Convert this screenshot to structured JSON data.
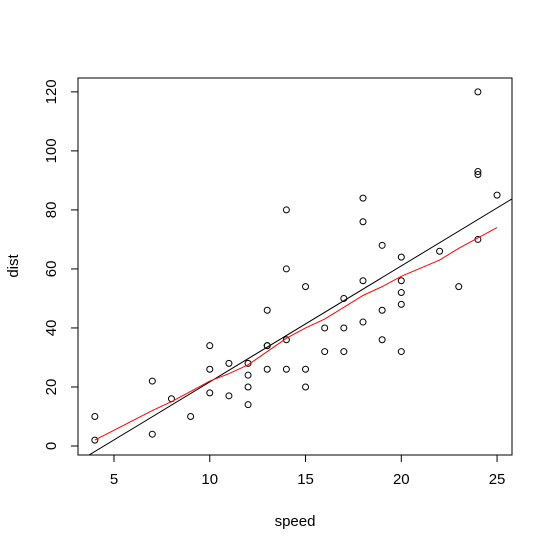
{
  "chart_data": {
    "type": "scatter",
    "xlabel": "speed",
    "ylabel": "dist",
    "x": [
      4,
      4,
      7,
      7,
      8,
      9,
      10,
      10,
      10,
      11,
      11,
      12,
      12,
      12,
      12,
      13,
      13,
      13,
      13,
      14,
      14,
      14,
      14,
      15,
      15,
      15,
      16,
      16,
      17,
      17,
      17,
      18,
      18,
      18,
      18,
      19,
      19,
      19,
      20,
      20,
      20,
      20,
      20,
      22,
      23,
      24,
      24,
      24,
      24,
      25
    ],
    "y": [
      2,
      10,
      4,
      22,
      16,
      10,
      18,
      26,
      34,
      17,
      28,
      14,
      20,
      24,
      28,
      26,
      34,
      34,
      46,
      26,
      36,
      60,
      80,
      20,
      26,
      54,
      32,
      40,
      32,
      40,
      50,
      42,
      56,
      76,
      84,
      36,
      46,
      68,
      32,
      48,
      52,
      56,
      64,
      66,
      54,
      70,
      92,
      93,
      120,
      85
    ],
    "point_color": "#000000",
    "regression": {
      "intercept": -17.58,
      "slope": 3.93,
      "color": "#000000"
    },
    "smooth": {
      "x": [
        4,
        7,
        8,
        9,
        10,
        11,
        12,
        13,
        14,
        15,
        16,
        17,
        18,
        19,
        20,
        22,
        23,
        24,
        25
      ],
      "y": [
        2,
        12,
        15,
        18.5,
        22,
        24.5,
        27.5,
        32,
        36.5,
        40,
        43,
        47,
        51,
        54,
        57.5,
        63,
        67,
        70.5,
        74
      ],
      "color": "#ff0000"
    },
    "xlim": [
      3.12,
      25.78
    ],
    "ylim": [
      -3.05,
      124.7
    ],
    "xticks": [
      5,
      10,
      15,
      20,
      25
    ],
    "yticks": [
      0,
      20,
      40,
      60,
      80,
      100,
      120
    ]
  }
}
